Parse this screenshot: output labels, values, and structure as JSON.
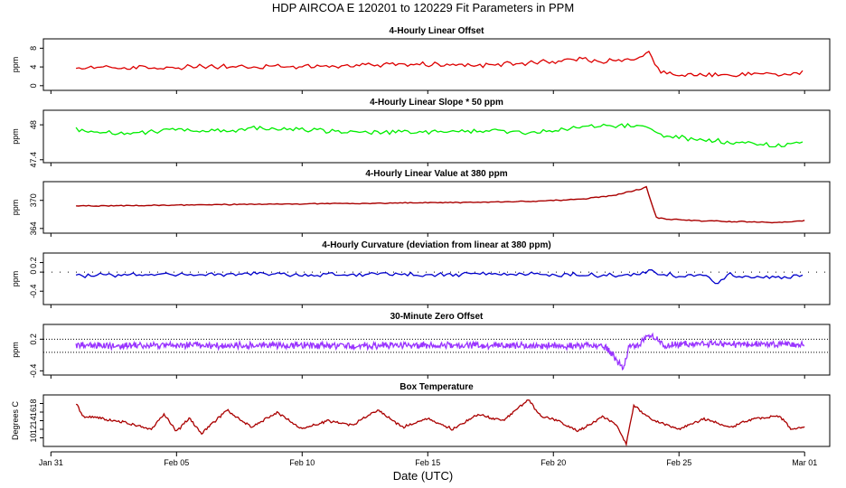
{
  "title": "HDP   AIRCOA E   120201 to 120229   Fit Parameters in PPM",
  "xlabel": "Date (UTC)",
  "xticks": [
    {
      "day": 0,
      "label": "Jan 31"
    },
    {
      "day": 5,
      "label": "Feb 05"
    },
    {
      "day": 10,
      "label": "Feb 10"
    },
    {
      "day": 15,
      "label": "Feb 15"
    },
    {
      "day": 20,
      "label": "Feb 20"
    },
    {
      "day": 25,
      "label": "Feb 25"
    },
    {
      "day": 30,
      "label": "Mar 01"
    }
  ],
  "chart_data": [
    {
      "type": "line",
      "title": "4-Hourly Linear Offset",
      "ylabel": "ppm",
      "ylim": [
        -1,
        10
      ],
      "yticks": [
        0,
        4,
        8
      ],
      "color": "#dd0000",
      "x_unit": "days since Jan 31",
      "series": [
        {
          "name": "offset",
          "x": [
            1.0,
            2.0,
            3.0,
            4.0,
            5.0,
            6.0,
            7.0,
            8.0,
            9.0,
            10.0,
            11.0,
            12.0,
            13.0,
            14.0,
            15.0,
            16.0,
            17.0,
            18.0,
            19.0,
            20.0,
            21.0,
            22.0,
            23.0,
            23.5,
            23.8,
            24.2,
            25.0,
            26.0,
            27.0,
            28.0,
            29.0,
            30.0
          ],
          "values": [
            3.5,
            4.0,
            3.8,
            4.0,
            3.8,
            4.2,
            4.0,
            3.9,
            4.0,
            4.2,
            4.1,
            4.3,
            4.5,
            4.4,
            4.6,
            4.5,
            4.4,
            4.6,
            4.8,
            5.2,
            5.6,
            5.2,
            5.5,
            6.2,
            7.0,
            3.0,
            2.2,
            2.5,
            2.3,
            2.6,
            2.4,
            2.8
          ]
        }
      ]
    },
    {
      "type": "line",
      "title": "4-Hourly Linear Slope * 50 ppm",
      "ylabel": "ppm",
      "ylim": [
        47.35,
        48.25
      ],
      "yticks": [
        47.4,
        48.0
      ],
      "color": "#00ee00",
      "x_unit": "days since Jan 31",
      "series": [
        {
          "name": "slope",
          "x": [
            1.0,
            2.0,
            3.0,
            4.0,
            5.0,
            6.0,
            7.0,
            8.0,
            9.0,
            10.0,
            11.0,
            12.0,
            13.0,
            14.0,
            15.0,
            16.0,
            17.0,
            18.0,
            19.0,
            20.0,
            21.0,
            22.0,
            23.0,
            23.6,
            24.2,
            25.0,
            26.0,
            27.0,
            28.0,
            29.0,
            30.0
          ],
          "values": [
            47.93,
            47.86,
            47.86,
            47.88,
            47.92,
            47.88,
            47.89,
            47.94,
            47.93,
            47.91,
            47.9,
            47.87,
            47.86,
            47.87,
            47.88,
            47.89,
            47.9,
            47.9,
            47.86,
            47.89,
            47.95,
            47.98,
            47.98,
            47.97,
            47.82,
            47.78,
            47.74,
            47.7,
            47.67,
            47.63,
            47.72
          ]
        }
      ]
    },
    {
      "type": "line",
      "title": "4-Hourly Linear Value at 380 ppm",
      "ylabel": "ppm",
      "ylim": [
        363,
        374
      ],
      "yticks": [
        364,
        370
      ],
      "color": "#aa0000",
      "x_unit": "days since Jan 31",
      "series": [
        {
          "name": "value",
          "x": [
            1.0,
            3.0,
            5.0,
            7.0,
            9.0,
            11.0,
            13.0,
            15.0,
            17.0,
            19.0,
            20.0,
            21.0,
            22.0,
            22.5,
            23.0,
            23.4,
            23.7,
            24.1,
            24.5,
            26.0,
            28.0,
            29.0,
            30.0
          ],
          "values": [
            368.8,
            368.9,
            369.0,
            369.1,
            369.2,
            369.3,
            369.4,
            369.5,
            369.6,
            369.8,
            370.0,
            370.2,
            370.8,
            371.2,
            371.8,
            372.3,
            372.8,
            366.3,
            366.0,
            365.6,
            365.4,
            365.3,
            365.7
          ]
        }
      ]
    },
    {
      "type": "line",
      "title": "4-Hourly Curvature (deviation from linear at 380 ppm)",
      "ylabel": "ppm",
      "ylim": [
        -0.68,
        0.4
      ],
      "yticks": [
        -0.4,
        0.0,
        0.2
      ],
      "color": "#0000cc",
      "x_unit": "days since Jan 31",
      "series": [
        {
          "name": "curvature",
          "x": [
            1.0,
            2.0,
            3.0,
            4.0,
            5.0,
            6.0,
            7.0,
            8.0,
            9.0,
            10.0,
            11.0,
            12.0,
            13.0,
            14.0,
            15.0,
            16.0,
            17.0,
            18.0,
            19.0,
            20.0,
            21.0,
            22.0,
            23.0,
            23.8,
            24.5,
            25.0,
            26.0,
            26.5,
            27.0,
            28.0,
            29.0,
            30.0
          ],
          "values": [
            -0.08,
            -0.05,
            -0.06,
            -0.04,
            -0.03,
            -0.05,
            -0.06,
            -0.04,
            -0.05,
            -0.06,
            -0.04,
            -0.05,
            -0.03,
            -0.05,
            -0.06,
            -0.05,
            -0.04,
            -0.05,
            -0.04,
            -0.06,
            -0.05,
            -0.07,
            -0.06,
            0.02,
            -0.05,
            -0.08,
            -0.06,
            -0.25,
            -0.05,
            -0.1,
            -0.12,
            -0.06
          ]
        }
      ]
    },
    {
      "type": "line",
      "title": "30-Minute Zero Offset",
      "ylabel": "ppm",
      "ylim": [
        -0.48,
        0.48
      ],
      "yticks": [
        -0.4,
        0.2
      ],
      "color": "#9933ff",
      "x_unit": "days since Jan 31",
      "series": [
        {
          "name": "zero offset",
          "x": [
            1.0,
            3.0,
            5.0,
            7.0,
            9.0,
            11.0,
            13.0,
            15.0,
            17.0,
            19.0,
            21.0,
            22.0,
            22.8,
            23.0,
            23.4,
            23.8,
            24.5,
            26.0,
            28.0,
            30.0
          ],
          "values": [
            0.08,
            0.07,
            0.09,
            0.08,
            0.09,
            0.08,
            0.08,
            0.09,
            0.08,
            0.08,
            0.07,
            0.08,
            -0.35,
            0.05,
            0.08,
            0.3,
            0.08,
            0.12,
            0.1,
            0.1
          ]
        }
      ]
    },
    {
      "type": "line",
      "title": "Box Temperature",
      "ylabel": "Degrees C",
      "ylim": [
        8,
        20
      ],
      "yticks": [
        10,
        12,
        14,
        16,
        18
      ],
      "color": "#aa0000",
      "x_unit": "days since Jan 31",
      "series": [
        {
          "name": "temperature",
          "x": [
            1.0,
            1.3,
            2.0,
            3.0,
            4.0,
            4.5,
            5.0,
            5.5,
            6.0,
            7.0,
            8.0,
            9.0,
            10.0,
            11.0,
            12.0,
            13.0,
            14.0,
            15.0,
            16.0,
            17.0,
            18.0,
            19.0,
            19.5,
            20.0,
            21.0,
            22.0,
            22.5,
            22.9,
            23.2,
            24.0,
            25.0,
            26.0,
            27.0,
            28.0,
            29.0,
            29.5,
            30.0
          ],
          "values": [
            18.0,
            15.0,
            14.5,
            13.5,
            12.0,
            15.5,
            11.5,
            14.5,
            11.0,
            16.5,
            12.5,
            16.0,
            12.0,
            14.0,
            13.0,
            16.5,
            12.5,
            14.5,
            12.0,
            15.5,
            14.0,
            19.0,
            15.0,
            14.5,
            11.5,
            15.0,
            13.0,
            8.5,
            17.5,
            14.0,
            12.0,
            14.5,
            12.5,
            14.5,
            15.0,
            12.0,
            12.5
          ]
        }
      ]
    }
  ]
}
